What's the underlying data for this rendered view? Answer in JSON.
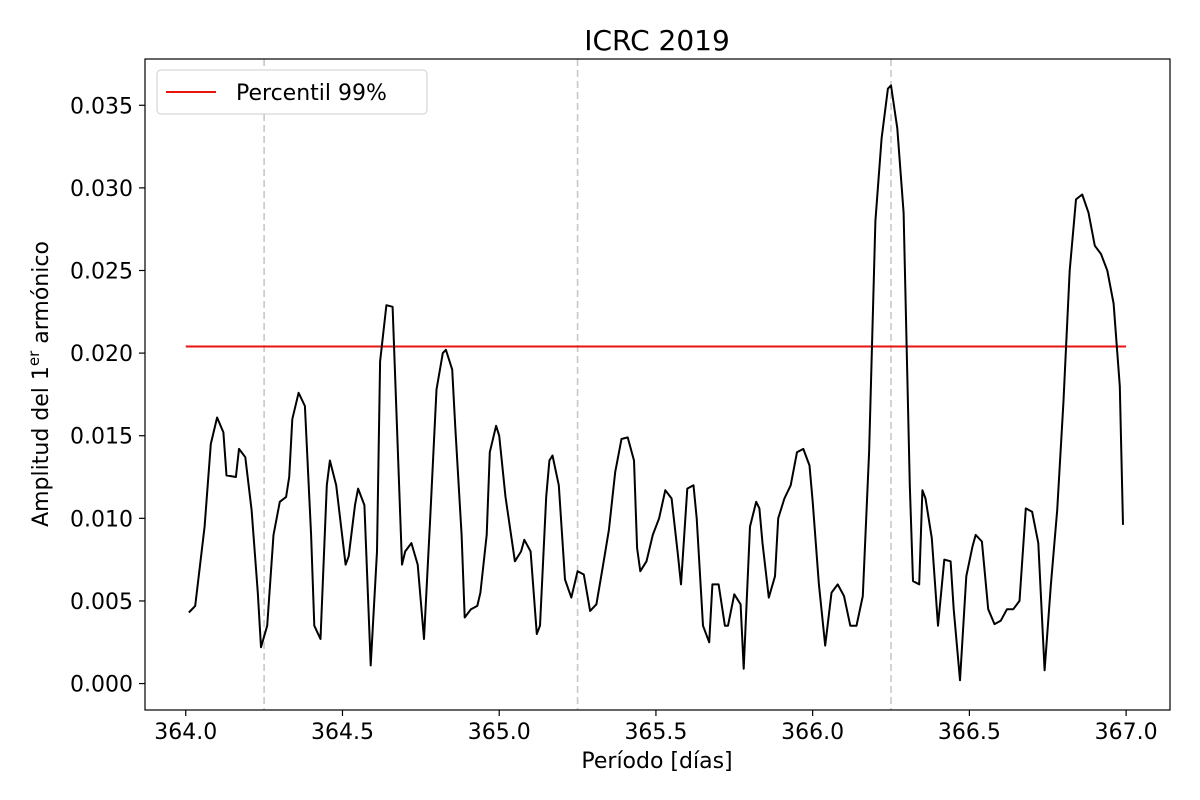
{
  "chart_data": {
    "type": "line",
    "title": "ICRC 2019",
    "xlabel": "Período [días]",
    "ylabel": {
      "main": "Amplitud del 1",
      "superscript": "er",
      "suffix": " armónico"
    },
    "xlim": [
      363.87,
      367.14
    ],
    "ylim": [
      -0.0016,
      0.0378
    ],
    "xticks": [
      364.0,
      364.5,
      365.0,
      365.5,
      366.0,
      366.5,
      367.0
    ],
    "xtick_labels": [
      "364.0",
      "364.5",
      "365.0",
      "365.5",
      "366.0",
      "366.5",
      "367.0"
    ],
    "yticks": [
      0.0,
      0.005,
      0.01,
      0.015,
      0.02,
      0.025,
      0.03,
      0.035
    ],
    "ytick_labels": [
      "0.000",
      "0.005",
      "0.010",
      "0.015",
      "0.020",
      "0.025",
      "0.030",
      "0.035"
    ],
    "grid": false,
    "legend_position": "top-left",
    "vlines": [
      364.25,
      365.25,
      366.25
    ],
    "threshold": {
      "name": "Percentil 99%",
      "value": 0.0204,
      "x": [
        364.0,
        367.0
      ],
      "color": "#e8150f"
    },
    "series": [
      {
        "color": "#000000",
        "x": [
          364.01,
          364.03,
          364.06,
          364.08,
          364.1,
          364.12,
          364.13,
          364.16,
          364.17,
          364.19,
          364.21,
          364.23,
          364.24,
          364.26,
          364.28,
          364.3,
          364.32,
          364.33,
          364.34,
          364.36,
          364.38,
          364.4,
          364.41,
          364.43,
          364.45,
          364.46,
          364.48,
          364.51,
          364.52,
          364.54,
          364.55,
          364.57,
          364.59,
          364.61,
          364.62,
          364.64,
          364.66,
          364.69,
          364.7,
          364.72,
          364.74,
          364.76,
          364.78,
          364.8,
          364.82,
          364.83,
          364.85,
          364.86,
          364.88,
          364.89,
          364.91,
          364.93,
          364.94,
          364.96,
          364.97,
          364.99,
          365.0,
          365.02,
          365.05,
          365.07,
          365.08,
          365.1,
          365.12,
          365.13,
          365.15,
          365.16,
          365.17,
          365.19,
          365.21,
          365.23,
          365.25,
          365.27,
          365.29,
          365.31,
          365.33,
          365.35,
          365.37,
          365.39,
          365.41,
          365.43,
          365.44,
          365.45,
          365.47,
          365.49,
          365.51,
          365.53,
          365.55,
          365.57,
          365.58,
          365.6,
          365.62,
          365.63,
          365.65,
          365.67,
          365.68,
          365.7,
          365.72,
          365.73,
          365.75,
          365.77,
          365.78,
          365.8,
          365.82,
          365.83,
          365.84,
          365.86,
          365.88,
          365.89,
          365.91,
          365.93,
          365.95,
          365.97,
          365.99,
          366.0,
          366.02,
          366.04,
          366.06,
          366.08,
          366.1,
          366.12,
          366.14,
          366.16,
          366.18,
          366.2,
          366.22,
          366.24,
          366.25,
          366.27,
          366.29,
          366.31,
          366.32,
          366.34,
          366.35,
          366.36,
          366.38,
          366.4,
          366.42,
          366.44,
          366.45,
          366.47,
          366.49,
          366.51,
          366.52,
          366.54,
          366.56,
          366.58,
          366.6,
          366.62,
          366.64,
          366.66,
          366.68,
          366.7,
          366.72,
          366.74,
          366.76,
          366.78,
          366.8,
          366.82,
          366.84,
          366.86,
          366.88,
          366.9,
          366.92,
          366.94,
          366.96,
          366.98,
          366.99
        ],
        "y": [
          0.0043,
          0.0047,
          0.0095,
          0.0145,
          0.0161,
          0.0152,
          0.0126,
          0.0125,
          0.0142,
          0.0137,
          0.0105,
          0.0055,
          0.0022,
          0.0035,
          0.009,
          0.011,
          0.0113,
          0.0125,
          0.016,
          0.0176,
          0.0168,
          0.009,
          0.0035,
          0.0027,
          0.012,
          0.0135,
          0.012,
          0.0072,
          0.0077,
          0.0108,
          0.0118,
          0.0108,
          0.0011,
          0.008,
          0.0195,
          0.0229,
          0.0228,
          0.0072,
          0.008,
          0.0085,
          0.0072,
          0.0027,
          0.01,
          0.0178,
          0.02,
          0.0202,
          0.019,
          0.0155,
          0.009,
          0.004,
          0.0045,
          0.0047,
          0.0055,
          0.009,
          0.014,
          0.0156,
          0.015,
          0.0113,
          0.0074,
          0.008,
          0.0087,
          0.008,
          0.003,
          0.0035,
          0.0113,
          0.0135,
          0.0138,
          0.012,
          0.0063,
          0.0052,
          0.0068,
          0.0066,
          0.0044,
          0.0048,
          0.007,
          0.0093,
          0.0128,
          0.0148,
          0.0149,
          0.0135,
          0.0082,
          0.0068,
          0.0074,
          0.009,
          0.01,
          0.0117,
          0.0112,
          0.0078,
          0.006,
          0.0118,
          0.012,
          0.01,
          0.0035,
          0.0025,
          0.006,
          0.006,
          0.0035,
          0.0035,
          0.0054,
          0.0048,
          0.0009,
          0.0095,
          0.011,
          0.0106,
          0.0085,
          0.0052,
          0.0065,
          0.01,
          0.0112,
          0.012,
          0.014,
          0.0142,
          0.0132,
          0.011,
          0.006,
          0.0023,
          0.0055,
          0.006,
          0.0053,
          0.0035,
          0.0035,
          0.0053,
          0.014,
          0.028,
          0.033,
          0.036,
          0.0362,
          0.0336,
          0.0285,
          0.012,
          0.0062,
          0.006,
          0.0117,
          0.0112,
          0.0088,
          0.0035,
          0.0075,
          0.0074,
          0.0045,
          0.0002,
          0.0065,
          0.0083,
          0.009,
          0.0086,
          0.0045,
          0.0036,
          0.0038,
          0.0045,
          0.0045,
          0.005,
          0.0106,
          0.0104,
          0.0085,
          0.0008,
          0.006,
          0.0105,
          0.017,
          0.025,
          0.0293,
          0.0296,
          0.0285,
          0.0265,
          0.026,
          0.025,
          0.023,
          0.018,
          0.0096
        ]
      }
    ]
  }
}
